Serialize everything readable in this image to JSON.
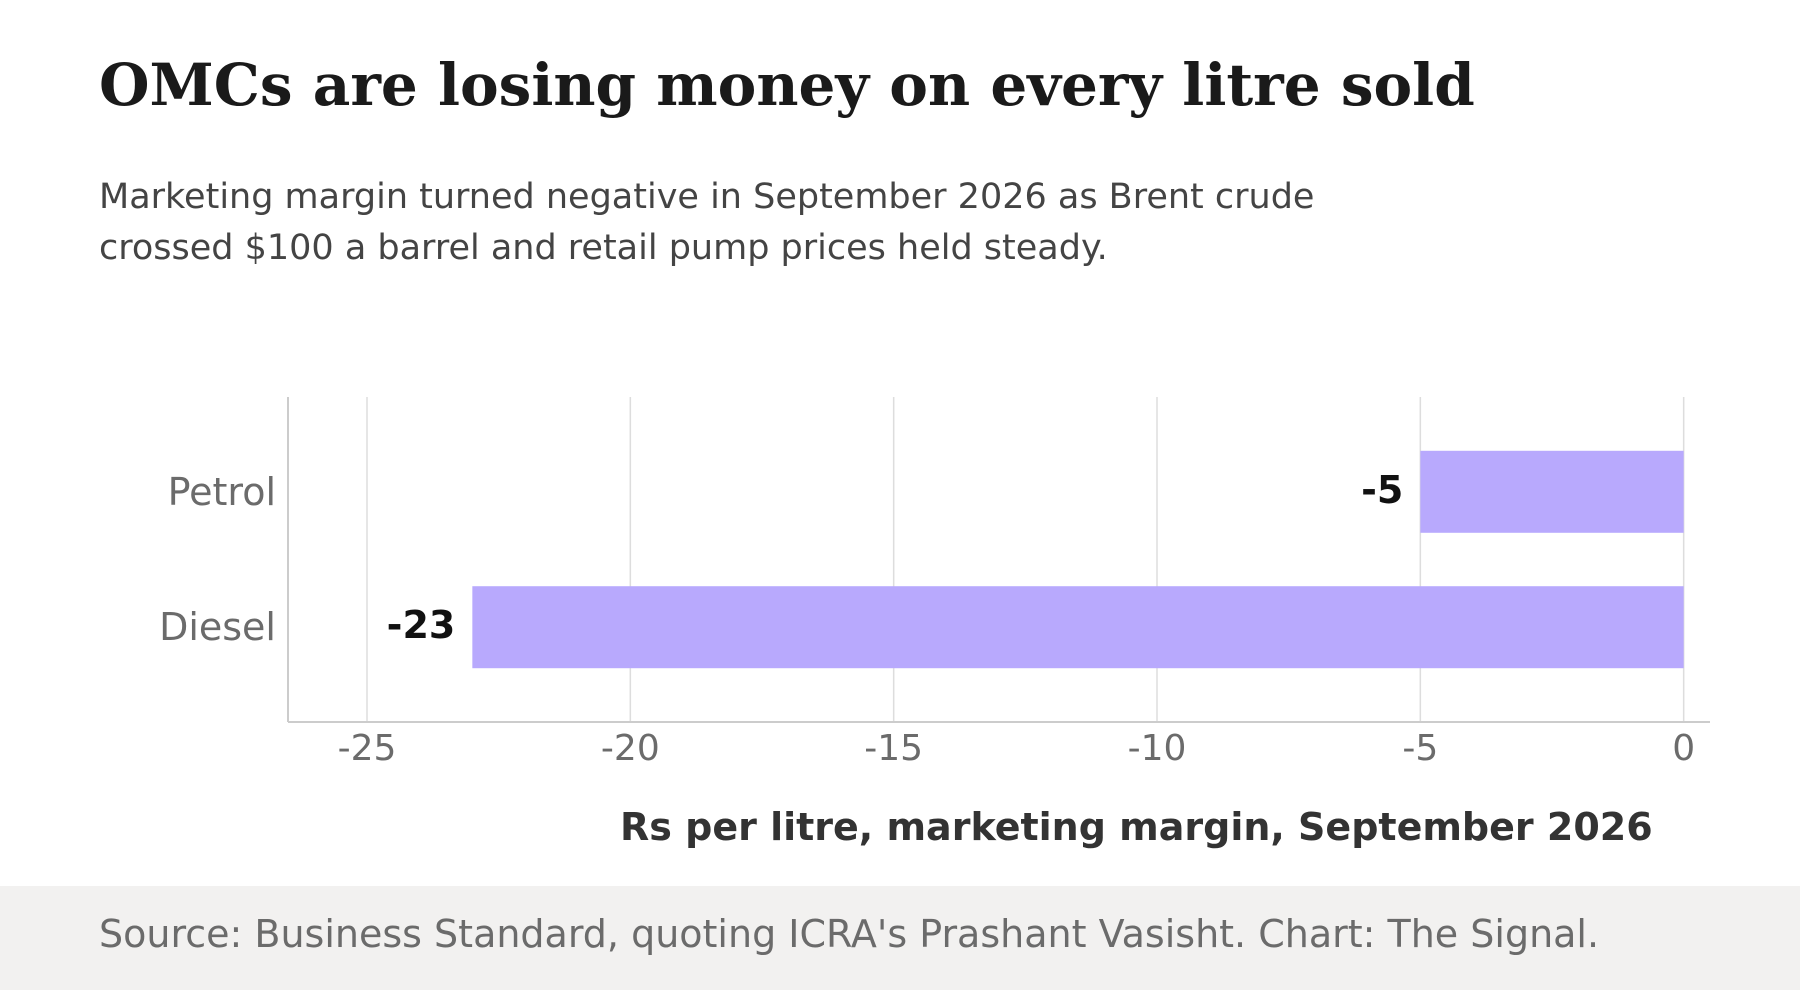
{
  "title": "OMCs are losing money on every litre sold",
  "subtitle": "Marketing margin turned negative in September 2026 as Brent crude crossed $100 a barrel and retail pump prices held steady.",
  "source": "Source: Business Standard, quoting ICRA's Prashant Vasisht. Chart: The Signal.",
  "chart_data": {
    "type": "bar",
    "orientation": "horizontal",
    "categories": [
      "Petrol",
      "Diesel"
    ],
    "values": [
      -5,
      -23
    ],
    "value_labels": [
      "-5",
      "-23"
    ],
    "title": "OMCs are losing money on every litre sold",
    "xlabel": "Rs per litre, marketing margin, September 2026",
    "ylabel": "",
    "xlim": [
      -26.5,
      0.5
    ],
    "x_ticks": [
      -25,
      -20,
      -15,
      -10,
      -5,
      0
    ],
    "x_tick_labels": [
      "-25",
      "-20",
      "-15",
      "-10",
      "-5",
      "0"
    ],
    "grid": true,
    "legend": "none",
    "colors": {
      "bar": "#b8a9fd",
      "grid": "#dddddd",
      "axis": "#cccccc"
    }
  }
}
